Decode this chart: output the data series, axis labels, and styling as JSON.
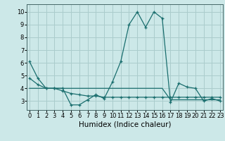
{
  "title": "",
  "xlabel": "Humidex (Indice chaleur)",
  "ylabel": "",
  "background_color": "#cce8e8",
  "grid_color": "#aacccc",
  "line_color": "#1a6e6e",
  "x_values": [
    0,
    1,
    2,
    3,
    4,
    5,
    6,
    7,
    8,
    9,
    10,
    11,
    12,
    13,
    14,
    15,
    16,
    17,
    18,
    19,
    20,
    21,
    22,
    23
  ],
  "series1": [
    6.1,
    4.8,
    4.0,
    4.0,
    4.0,
    2.7,
    2.7,
    3.1,
    3.5,
    3.2,
    4.5,
    6.1,
    9.0,
    10.0,
    8.8,
    10.0,
    9.5,
    2.9,
    4.4,
    4.1,
    4.0,
    3.0,
    3.2,
    3.0
  ],
  "series2": [
    4.0,
    4.0,
    4.0,
    4.0,
    4.0,
    4.0,
    4.0,
    4.0,
    4.0,
    4.0,
    4.0,
    4.0,
    4.0,
    4.0,
    4.0,
    4.0,
    4.0,
    3.1,
    3.1,
    3.1,
    3.1,
    3.1,
    3.1,
    3.1
  ],
  "series3": [
    4.8,
    4.3,
    4.0,
    4.0,
    3.8,
    3.6,
    3.5,
    3.4,
    3.4,
    3.3,
    3.3,
    3.3,
    3.3,
    3.3,
    3.3,
    3.3,
    3.3,
    3.3,
    3.3,
    3.3,
    3.3,
    3.3,
    3.3,
    3.3
  ],
  "xlim": [
    -0.3,
    23.3
  ],
  "ylim": [
    2.3,
    10.6
  ],
  "yticks": [
    3,
    4,
    5,
    6,
    7,
    8,
    9,
    10
  ],
  "xticks": [
    0,
    1,
    2,
    3,
    4,
    5,
    6,
    7,
    8,
    9,
    10,
    11,
    12,
    13,
    14,
    15,
    16,
    17,
    18,
    19,
    20,
    21,
    22,
    23
  ],
  "xlabel_fontsize": 7.5,
  "tick_fontsize": 6.0
}
